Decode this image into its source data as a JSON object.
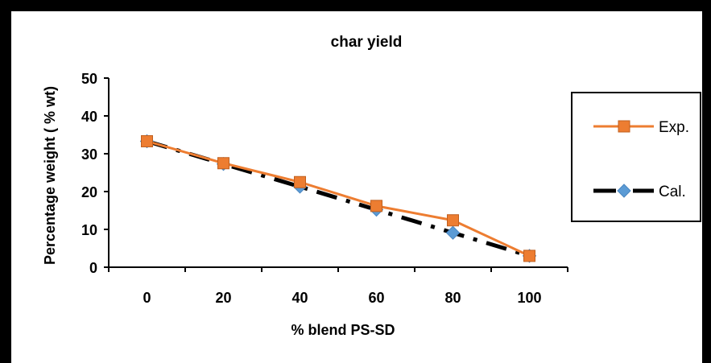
{
  "chart_data": {
    "type": "line",
    "title": "char yield",
    "xlabel": "% blend PS-SD",
    "ylabel": "Percentage weight ( % wt)",
    "categories": [
      "0",
      "20",
      "40",
      "60",
      "80",
      "100"
    ],
    "ylim": [
      0,
      50
    ],
    "yticks": [
      "0",
      "10",
      "20",
      "30",
      "40",
      "50"
    ],
    "grid": false,
    "legend_position": "right",
    "series": [
      {
        "name": "Exp.",
        "values": [
          33.3,
          27.5,
          22.5,
          16.2,
          12.4,
          3.0
        ],
        "color": "#ED7D31",
        "marker": "square",
        "line": "solid"
      },
      {
        "name": "Cal.",
        "values": [
          33.3,
          27.3,
          21.3,
          15.2,
          9.1,
          3.0
        ],
        "color": "#000000",
        "marker_color": "#5B9BD5",
        "marker": "diamond",
        "line": "dash-dot"
      }
    ]
  }
}
